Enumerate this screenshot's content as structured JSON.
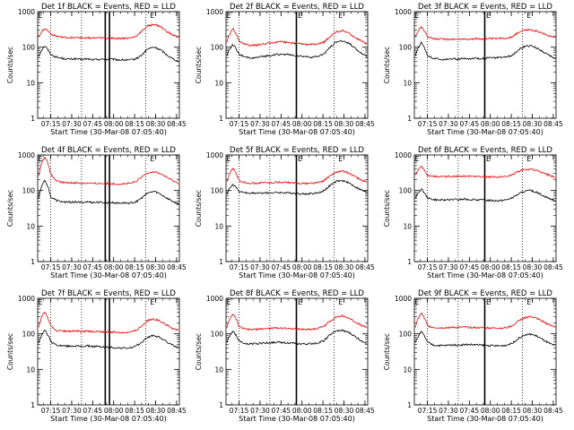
{
  "chart_data": [
    {
      "type": "line",
      "title": "Det 1f BLACK = Events, RED = LLD",
      "xlabel": "Start Time (30-Mar-08 07:05:40)",
      "ylabel": "Counts/sec",
      "yscale": "log",
      "ylim": [
        1,
        1000
      ],
      "x_ticks": [
        "07:15",
        "07:30",
        "07:45",
        "08:00",
        "08:15",
        "08:30",
        "08:45"
      ],
      "y_ticks": [
        "1",
        "10",
        "100",
        "1000"
      ],
      "xlim": [
        "07:05:40",
        "08:47:00"
      ],
      "dotted_vlines": [
        "07:15",
        "07:37",
        "08:23"
      ],
      "solid_vlines": [
        "07:54",
        "07:57"
      ],
      "e_markers": [
        "07:06",
        "08:26"
      ],
      "series": [
        {
          "color": "#000000",
          "values": [
            55,
            110,
            62,
            52,
            48,
            46,
            47,
            45,
            47,
            44,
            46,
            45,
            46,
            44,
            44,
            43,
            47,
            60,
            90,
            100,
            85,
            62,
            48,
            40
          ]
        },
        {
          "color": "#ff0000",
          "values": [
            200,
            340,
            240,
            200,
            190,
            185,
            188,
            182,
            184,
            180,
            182,
            178,
            180,
            176,
            178,
            180,
            200,
            280,
            400,
            440,
            380,
            280,
            220,
            190
          ]
        }
      ]
    },
    {
      "type": "line",
      "title": "Det 2f BLACK = Events, RED = LLD",
      "xlabel": "Start Time (30-Mar-08 07:05:40)",
      "ylabel": "Counts/sec",
      "yscale": "log",
      "ylim": [
        1,
        1000
      ],
      "x_ticks": [
        "07:15",
        "07:30",
        "07:45",
        "08:00",
        "08:15",
        "08:30",
        "08:45"
      ],
      "y_ticks": [
        "1",
        "10",
        "100",
        "1000"
      ],
      "xlim": [
        "07:05:40",
        "08:47:00"
      ],
      "dotted_vlines": [
        "07:15",
        "07:37",
        "08:23"
      ],
      "solid_vlines": [
        "07:56"
      ],
      "e_markers": [
        "07:06",
        "07:57",
        "08:26"
      ],
      "series": [
        {
          "color": "#000000",
          "values": [
            60,
            120,
            62,
            52,
            50,
            51,
            55,
            58,
            62,
            63,
            62,
            58,
            56,
            54,
            52,
            55,
            65,
            100,
            140,
            150,
            130,
            95,
            70,
            55
          ]
        },
        {
          "color": "#ff0000",
          "values": [
            140,
            330,
            150,
            118,
            112,
            115,
            122,
            130,
            138,
            140,
            138,
            130,
            125,
            120,
            118,
            122,
            140,
            200,
            270,
            290,
            250,
            190,
            150,
            125
          ]
        }
      ]
    },
    {
      "type": "line",
      "title": "Det 3f BLACK = Events, RED = LLD",
      "xlabel": "Start Time (30-Mar-08 07:05:40)",
      "ylabel": "Counts/sec",
      "yscale": "log",
      "ylim": [
        1,
        1000
      ],
      "x_ticks": [
        "07:15",
        "07:30",
        "07:45",
        "08:00",
        "08:15",
        "08:30",
        "08:45"
      ],
      "y_ticks": [
        "1",
        "10",
        "100",
        "1000"
      ],
      "xlim": [
        "07:05:40",
        "08:47:00"
      ],
      "dotted_vlines": [
        "07:15",
        "07:37",
        "08:23"
      ],
      "solid_vlines": [
        "07:56"
      ],
      "e_markers": [
        "07:06",
        "07:57",
        "08:26"
      ],
      "series": [
        {
          "color": "#000000",
          "values": [
            55,
            140,
            58,
            48,
            46,
            46,
            47,
            46,
            48,
            47,
            49,
            48,
            50,
            50,
            51,
            53,
            60,
            85,
            105,
            110,
            95,
            75,
            58,
            48
          ]
        },
        {
          "color": "#ff0000",
          "values": [
            190,
            380,
            200,
            172,
            168,
            168,
            170,
            168,
            170,
            168,
            172,
            170,
            174,
            172,
            176,
            180,
            200,
            260,
            300,
            310,
            280,
            240,
            210,
            190
          ]
        }
      ]
    },
    {
      "type": "line",
      "title": "Det 4f BLACK = Events, RED = LLD",
      "xlabel": "Start Time (30-Mar-08 07:05:40)",
      "ylabel": "Counts/sec",
      "yscale": "log",
      "ylim": [
        1,
        1000
      ],
      "x_ticks": [
        "07:15",
        "07:30",
        "07:45",
        "08:00",
        "08:15",
        "08:30",
        "08:45"
      ],
      "y_ticks": [
        "1",
        "10",
        "100",
        "1000"
      ],
      "xlim": [
        "07:05:40",
        "08:47:00"
      ],
      "dotted_vlines": [
        "07:15",
        "07:37",
        "08:23"
      ],
      "solid_vlines": [
        "07:54",
        "07:57"
      ],
      "e_markers": [
        "07:06",
        "08:26"
      ],
      "series": [
        {
          "color": "#000000",
          "values": [
            60,
            200,
            65,
            52,
            48,
            47,
            48,
            46,
            48,
            46,
            47,
            45,
            46,
            44,
            45,
            44,
            48,
            62,
            85,
            95,
            80,
            62,
            50,
            42
          ]
        },
        {
          "color": "#ff0000",
          "values": [
            250,
            900,
            280,
            180,
            168,
            165,
            166,
            160,
            162,
            158,
            160,
            155,
            158,
            152,
            155,
            158,
            175,
            240,
            320,
            340,
            300,
            240,
            190,
            160
          ]
        }
      ]
    },
    {
      "type": "line",
      "title": "Det 5f BLACK = Events, RED = LLD",
      "xlabel": "Start Time (30-Mar-08 07:05:40)",
      "ylabel": "Counts/sec",
      "yscale": "log",
      "ylim": [
        1,
        1000
      ],
      "x_ticks": [
        "07:15",
        "07:30",
        "07:45",
        "08:00",
        "08:15",
        "08:30",
        "08:45"
      ],
      "y_ticks": [
        "1",
        "10",
        "100",
        "1000"
      ],
      "xlim": [
        "07:05:40",
        "08:47:00"
      ],
      "dotted_vlines": [
        "07:15",
        "07:37",
        "08:23"
      ],
      "solid_vlines": [
        "07:56"
      ],
      "e_markers": [
        "07:06",
        "07:57",
        "08:26"
      ],
      "series": [
        {
          "color": "#000000",
          "values": [
            85,
            150,
            95,
            86,
            84,
            84,
            86,
            86,
            88,
            88,
            86,
            84,
            82,
            80,
            82,
            86,
            100,
            140,
            180,
            190,
            165,
            130,
            105,
            88
          ]
        },
        {
          "color": "#ff0000",
          "values": [
            180,
            420,
            190,
            166,
            162,
            162,
            164,
            166,
            170,
            170,
            166,
            162,
            160,
            158,
            160,
            166,
            190,
            260,
            330,
            350,
            310,
            250,
            200,
            170
          ]
        }
      ]
    },
    {
      "type": "line",
      "title": "Det 6f BLACK = Events, RED = LLD",
      "xlabel": "Start Time (30-Mar-08 07:05:40)",
      "ylabel": "Counts/sec",
      "yscale": "log",
      "ylim": [
        1,
        1000
      ],
      "x_ticks": [
        "07:15",
        "07:30",
        "07:45",
        "08:00",
        "08:15",
        "08:30",
        "08:45"
      ],
      "y_ticks": [
        "1",
        "10",
        "100",
        "1000"
      ],
      "xlim": [
        "07:05:40",
        "08:47:00"
      ],
      "dotted_vlines": [
        "07:15",
        "07:37",
        "08:23"
      ],
      "solid_vlines": [
        "07:56"
      ],
      "e_markers": [
        "07:06",
        "07:57",
        "08:26"
      ],
      "series": [
        {
          "color": "#000000",
          "values": [
            60,
            110,
            62,
            56,
            54,
            54,
            56,
            55,
            57,
            56,
            55,
            54,
            53,
            52,
            52,
            55,
            62,
            80,
            95,
            100,
            88,
            72,
            60,
            52
          ]
        },
        {
          "color": "#ff0000",
          "values": [
            260,
            480,
            270,
            250,
            246,
            246,
            250,
            250,
            256,
            254,
            250,
            246,
            244,
            240,
            242,
            250,
            280,
            350,
            390,
            400,
            360,
            310,
            270,
            240
          ]
        }
      ]
    },
    {
      "type": "line",
      "title": "Det 7f BLACK = Events, RED = LLD",
      "xlabel": "Start Time (30-Mar-08 07:05:40)",
      "ylabel": "Counts/sec",
      "yscale": "log",
      "ylim": [
        1,
        1000
      ],
      "x_ticks": [
        "07:15",
        "07:30",
        "07:45",
        "08:00",
        "08:15",
        "08:30",
        "08:45"
      ],
      "y_ticks": [
        "1",
        "10",
        "100",
        "1000"
      ],
      "xlim": [
        "07:05:40",
        "08:47:00"
      ],
      "dotted_vlines": [
        "07:15",
        "07:37",
        "08:23"
      ],
      "solid_vlines": [
        "07:54",
        "07:57"
      ],
      "e_markers": [
        "07:06",
        "08:26"
      ],
      "series": [
        {
          "color": "#000000",
          "values": [
            55,
            130,
            60,
            48,
            46,
            45,
            46,
            44,
            46,
            44,
            44,
            42,
            42,
            40,
            40,
            40,
            44,
            58,
            82,
            90,
            78,
            60,
            48,
            42
          ]
        },
        {
          "color": "#ff0000",
          "values": [
            150,
            420,
            160,
            124,
            120,
            118,
            120,
            116,
            118,
            115,
            116,
            112,
            112,
            110,
            110,
            112,
            125,
            170,
            240,
            260,
            230,
            180,
            140,
            125
          ]
        }
      ]
    },
    {
      "type": "line",
      "title": "Det 8f BLACK = Events, RED = LLD",
      "xlabel": "Start Time (30-Mar-08 07:05:40)",
      "ylabel": "Counts/sec",
      "yscale": "log",
      "ylim": [
        1,
        1000
      ],
      "x_ticks": [
        "07:15",
        "07:30",
        "07:45",
        "08:00",
        "08:15",
        "08:30",
        "08:45"
      ],
      "y_ticks": [
        "1",
        "10",
        "100",
        "1000"
      ],
      "xlim": [
        "07:05:40",
        "08:47:00"
      ],
      "dotted_vlines": [
        "07:15",
        "07:37",
        "08:23"
      ],
      "solid_vlines": [
        "07:56"
      ],
      "e_markers": [
        "07:06",
        "07:57",
        "08:26"
      ],
      "series": [
        {
          "color": "#000000",
          "values": [
            60,
            120,
            62,
            52,
            52,
            53,
            56,
            56,
            58,
            58,
            56,
            54,
            52,
            52,
            53,
            56,
            65,
            95,
            120,
            125,
            110,
            85,
            65,
            55
          ]
        },
        {
          "color": "#ff0000",
          "values": [
            150,
            360,
            158,
            135,
            132,
            134,
            140,
            142,
            146,
            146,
            142,
            138,
            135,
            134,
            136,
            142,
            165,
            230,
            300,
            320,
            280,
            220,
            175,
            150
          ]
        }
      ]
    },
    {
      "type": "line",
      "title": "Det 9f BLACK = Events, RED = LLD",
      "xlabel": "Start Time (30-Mar-08 07:05:40)",
      "ylabel": "Counts/sec",
      "yscale": "log",
      "ylim": [
        1,
        1000
      ],
      "x_ticks": [
        "07:15",
        "07:30",
        "07:45",
        "08:00",
        "08:15",
        "08:30",
        "08:45"
      ],
      "y_ticks": [
        "1",
        "10",
        "100",
        "1000"
      ],
      "xlim": [
        "07:05:40",
        "08:47:00"
      ],
      "dotted_vlines": [
        "07:15",
        "07:37",
        "08:23"
      ],
      "solid_vlines": [
        "07:56"
      ],
      "e_markers": [
        "07:06",
        "07:57",
        "08:26"
      ],
      "series": [
        {
          "color": "#000000",
          "values": [
            55,
            115,
            58,
            48,
            47,
            47,
            49,
            48,
            50,
            50,
            49,
            48,
            47,
            46,
            46,
            48,
            55,
            75,
            92,
            98,
            86,
            68,
            54,
            46
          ]
        },
        {
          "color": "#ff0000",
          "values": [
            160,
            380,
            168,
            150,
            148,
            148,
            152,
            150,
            154,
            154,
            150,
            148,
            146,
            144,
            146,
            150,
            170,
            230,
            290,
            305,
            270,
            220,
            180,
            160
          ]
        }
      ]
    }
  ]
}
